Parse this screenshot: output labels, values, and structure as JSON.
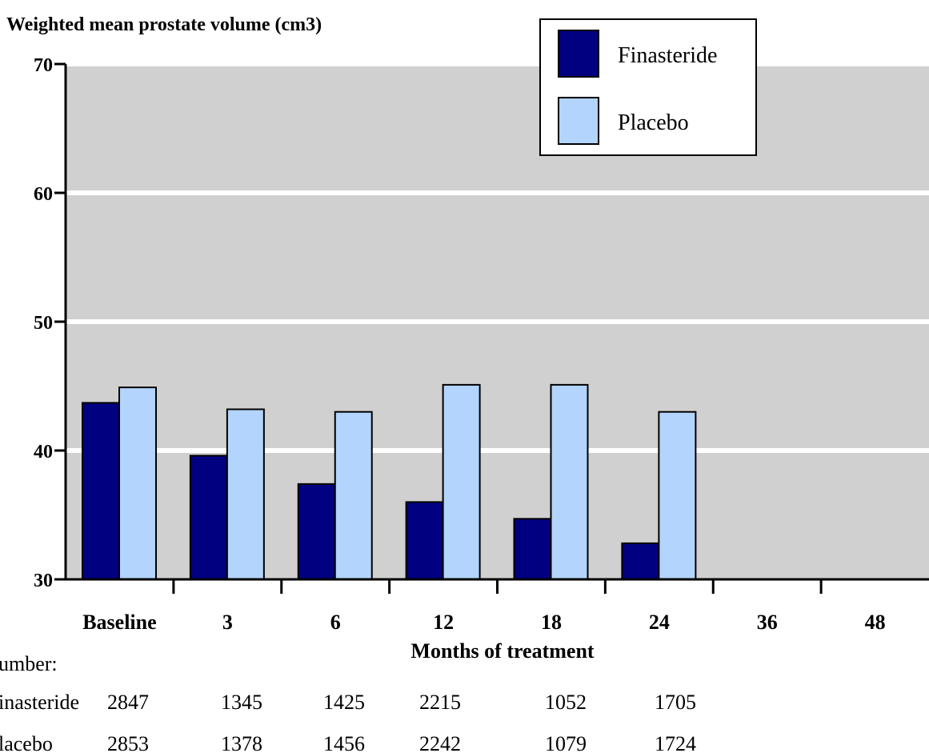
{
  "chart_data": {
    "type": "bar",
    "title": "",
    "ylabel": "Weighted mean prostate volume (cm3)",
    "xlabel": "Months of treatment",
    "categories": [
      "Baseline",
      "3",
      "6",
      "12",
      "18",
      "24",
      "36",
      "48"
    ],
    "ylim": [
      30,
      70
    ],
    "yticks": [
      30,
      40,
      50,
      60,
      70
    ],
    "grid": true,
    "legend_position": "top-right",
    "series": [
      {
        "name": "Finasteride",
        "color": "#000080",
        "values": [
          43.7,
          39.6,
          37.4,
          36.0,
          34.7,
          32.8,
          null,
          null
        ]
      },
      {
        "name": "Placebo",
        "color": "#b3d4fc",
        "values": [
          44.9,
          43.2,
          43.0,
          45.1,
          45.1,
          43.0,
          null,
          null
        ]
      }
    ]
  },
  "number_table": {
    "heading": "umber:",
    "rows": [
      {
        "label": "inasteride",
        "values": [
          "2847",
          "1345",
          "1425",
          "2215",
          "1052",
          "1705"
        ]
      },
      {
        "label": "lacebo",
        "values": [
          "2853",
          "1378",
          "1456",
          "2242",
          "1079",
          "1724"
        ]
      }
    ]
  },
  "colors": {
    "plot_background": "#d0d0d0",
    "gridline": "#ffffff",
    "bar_outline": "#000000"
  }
}
